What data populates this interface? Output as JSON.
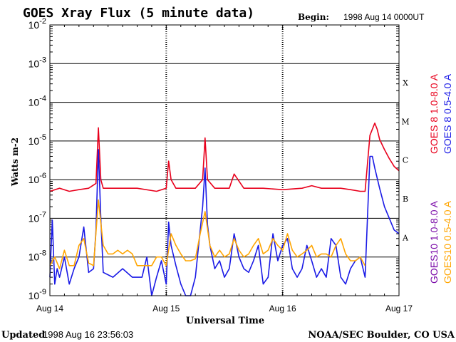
{
  "header": {
    "title": "GOES Xray Flux (5 minute data)",
    "begin_label": "Begin:",
    "begin_value": "1998 Aug 14 0000UT"
  },
  "footer": {
    "updated_label": "Updated",
    "updated_value": "1998 Aug 16 23:56:03",
    "credit": "NOAA/SEC Boulder, CO USA"
  },
  "chart_data": {
    "type": "line",
    "title": "GOES Xray Flux (5 minute data)",
    "xlabel": "Universal Time",
    "ylabel": "Watts m-2",
    "y_scale": "log",
    "ylim": [
      1e-09,
      0.01
    ],
    "y_ticks": [
      {
        "base": "10",
        "exp": "-9"
      },
      {
        "base": "10",
        "exp": "-8"
      },
      {
        "base": "10",
        "exp": "-7"
      },
      {
        "base": "10",
        "exp": "-6"
      },
      {
        "base": "10",
        "exp": "-5"
      },
      {
        "base": "10",
        "exp": "-4"
      },
      {
        "base": "10",
        "exp": "-3"
      },
      {
        "base": "10",
        "exp": "-2"
      }
    ],
    "x_ticks": [
      "Aug 14",
      "Aug 15",
      "Aug 16",
      "Aug 17"
    ],
    "xlim": [
      "1998-08-14 00:00",
      "1998-08-17 00:00"
    ],
    "grid": true,
    "flare_classes": [
      {
        "label": "A",
        "flux": 1e-08
      },
      {
        "label": "B",
        "flux": 1e-07
      },
      {
        "label": "C",
        "flux": 1e-06
      },
      {
        "label": "M",
        "flux": 1e-05
      },
      {
        "label": "X",
        "flux": 0.0001
      }
    ],
    "legend_placement": "right, rotated",
    "series": [
      {
        "name": "GOES 8 1.0-8.0 A",
        "color": "#e8001c",
        "x_hours": [
          0,
          2,
          4,
          6,
          8,
          9.5,
          10,
          10.5,
          11,
          14,
          18,
          22,
          24,
          24.5,
          25,
          26,
          30,
          31.5,
          32,
          32.5,
          34,
          37,
          38,
          40,
          44,
          48,
          52,
          54,
          56,
          60,
          62,
          64,
          65,
          66,
          67,
          67.5,
          68,
          69,
          70,
          71,
          72
        ],
        "flux": [
          5e-07,
          6e-07,
          5e-07,
          5.5e-07,
          6e-07,
          8e-07,
          2.2e-05,
          1e-06,
          6e-07,
          6e-07,
          6e-07,
          5e-07,
          6e-07,
          3e-06,
          1e-06,
          6e-07,
          6e-07,
          1e-06,
          1.2e-05,
          1e-06,
          6e-07,
          6e-07,
          1.4e-06,
          6e-07,
          6e-07,
          5.5e-07,
          6e-07,
          7e-07,
          6e-07,
          6e-07,
          5.5e-07,
          5e-07,
          5e-07,
          1.4e-05,
          2.9e-05,
          2e-05,
          1.1e-05,
          6e-06,
          3.5e-06,
          2.2e-06,
          1.7e-06
        ]
      },
      {
        "name": "GOES 8 0.5-4.0 A",
        "color": "#1a1ae6",
        "x_hours": [
          0,
          0.5,
          1,
          1.5,
          2,
          3,
          4,
          5,
          6,
          7,
          8,
          9,
          9.5,
          10,
          10.5,
          11,
          13,
          15,
          17,
          19,
          20,
          21,
          22,
          23,
          24,
          24.5,
          25,
          26,
          27,
          28,
          29,
          30,
          31,
          31.5,
          32,
          32.5,
          33,
          34,
          35,
          36,
          37,
          38,
          39,
          40,
          41,
          42,
          43,
          44,
          45,
          46,
          47,
          48,
          49,
          50,
          51,
          52,
          53,
          54,
          55,
          56,
          57,
          58,
          59,
          60,
          61,
          62,
          63,
          64,
          65,
          66,
          66.5,
          67,
          68,
          69,
          70,
          71,
          72
        ],
        "flux": [
          3e-09,
          9e-08,
          2e-09,
          5e-09,
          3e-09,
          1e-08,
          2e-09,
          5e-09,
          1e-08,
          6e-08,
          4e-09,
          5e-09,
          5e-08,
          6e-06,
          1e-07,
          4e-09,
          3e-09,
          5e-09,
          3e-09,
          3e-09,
          1e-08,
          1e-09,
          3e-09,
          8e-09,
          2e-09,
          8e-08,
          2e-08,
          6e-09,
          2e-09,
          1e-09,
          1e-09,
          3e-09,
          5e-08,
          2e-07,
          2e-06,
          7e-08,
          2e-08,
          5e-09,
          8e-09,
          3e-09,
          5e-09,
          4e-08,
          1e-08,
          5e-09,
          4e-09,
          8e-09,
          2e-08,
          2e-09,
          3e-09,
          4e-08,
          8e-09,
          2e-08,
          3e-08,
          5e-09,
          3e-09,
          5e-09,
          2e-08,
          8e-09,
          3e-09,
          5e-09,
          3e-09,
          3e-08,
          2e-08,
          3e-09,
          2e-09,
          5e-09,
          8e-09,
          1e-08,
          3e-09,
          4e-06,
          4e-06,
          2e-06,
          6e-07,
          2e-07,
          1e-07,
          5e-08,
          4e-08
        ]
      },
      {
        "name": "GOES10 1.0-8.0 A",
        "color": "#7a0aa8",
        "x_hours": [],
        "flux": []
      },
      {
        "name": "GOES10 0.5-4.0 A",
        "color": "#ffa500",
        "x_hours": [
          0,
          1,
          2,
          3,
          4,
          5,
          6,
          7,
          8,
          9,
          10,
          11,
          12,
          13,
          14,
          15,
          16,
          17,
          18,
          19,
          20,
          21,
          22,
          23,
          24,
          25,
          26,
          27,
          28,
          29,
          30,
          31,
          32,
          33,
          34,
          35,
          36,
          37,
          38,
          39,
          40,
          41,
          42,
          43,
          44,
          45,
          46,
          47,
          48,
          49,
          50,
          51,
          52,
          53,
          54,
          55,
          56,
          57,
          58,
          59,
          60,
          61,
          62,
          63,
          64,
          65
        ],
        "flux": [
          6e-09,
          1e-08,
          5e-09,
          1.5e-08,
          6e-09,
          6e-09,
          2e-08,
          3e-08,
          7e-09,
          6e-09,
          3e-07,
          2e-08,
          1.2e-08,
          1.2e-08,
          1.5e-08,
          1.2e-08,
          1.5e-08,
          1.2e-08,
          6e-09,
          6e-09,
          6e-09,
          6e-09,
          1e-08,
          1e-08,
          6e-09,
          4e-08,
          2e-08,
          1.2e-08,
          8e-09,
          8e-09,
          9e-09,
          4e-08,
          1.5e-07,
          2e-08,
          1e-08,
          1.5e-08,
          1e-08,
          1.2e-08,
          3e-08,
          1.5e-08,
          1e-08,
          1.2e-08,
          2e-08,
          3e-08,
          1.2e-08,
          1.5e-08,
          3e-08,
          2e-08,
          1.5e-08,
          4e-08,
          1.5e-08,
          1e-08,
          1.2e-08,
          1.5e-08,
          2e-08,
          1e-08,
          1.2e-08,
          1.2e-08,
          1e-08,
          2e-08,
          3e-08,
          1.2e-08,
          8e-09,
          8e-09,
          1e-08,
          6e-09
        ]
      }
    ]
  }
}
